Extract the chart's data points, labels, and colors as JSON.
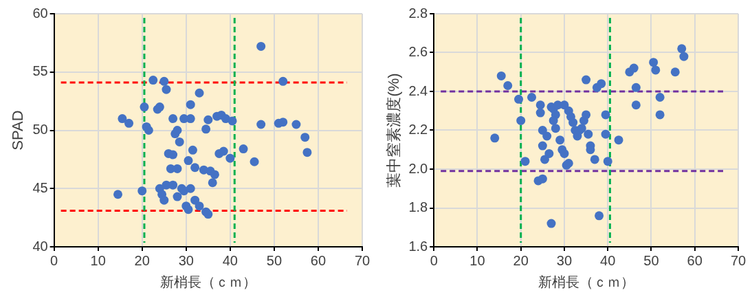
{
  "chart_data": [
    {
      "type": "scatter",
      "xlabel": "新梢長（ｃｍ）",
      "ylabel": "SPAD",
      "xlim": [
        0,
        70
      ],
      "xticks": [
        0,
        10,
        20,
        30,
        40,
        50,
        60,
        70
      ],
      "ylim": [
        40,
        60
      ],
      "yticks": [
        40,
        45,
        50,
        55,
        60
      ],
      "grid": true,
      "marker": "circle",
      "ref_lines": [
        {
          "axis": "y",
          "value": 54.1,
          "color": "#ff0000",
          "line_style": "dashed"
        },
        {
          "axis": "y",
          "value": 43.1,
          "color": "#ff0000",
          "line_style": "dashed"
        },
        {
          "axis": "x",
          "value": 20.5,
          "color": "#00b050",
          "line_style": "dashed"
        },
        {
          "axis": "x",
          "value": 41,
          "color": "#00b050",
          "line_style": "dashed"
        }
      ],
      "series": [
        {
          "color": "#4472c4",
          "x": [
            14.5,
            15.5,
            17,
            20,
            20.5,
            21,
            21.5,
            22.5,
            23.5,
            24,
            25,
            25.5,
            24,
            24.5,
            25,
            25.5,
            26,
            26.5,
            27,
            27,
            27.5,
            28,
            28.5,
            28,
            27,
            28,
            29,
            29.5,
            30,
            30.5,
            30.5,
            29.5,
            31,
            31,
            31.5,
            32,
            31,
            32,
            33,
            33,
            34,
            34.5,
            35,
            34.5,
            35,
            35.5,
            36,
            36.5,
            37,
            37.5,
            38,
            38.5,
            39,
            40,
            40.5,
            43,
            45.5,
            47,
            47,
            51,
            52,
            52,
            55,
            57,
            57.5
          ],
          "values": [
            44.5,
            51,
            50.6,
            44.8,
            52,
            50.3,
            50,
            54.3,
            51.8,
            52,
            54.2,
            53.5,
            45,
            44.5,
            44,
            45.3,
            48,
            46.7,
            47.9,
            51,
            49.7,
            50,
            49,
            46.7,
            45.3,
            44.3,
            45,
            44.8,
            43.5,
            43.2,
            47.4,
            51,
            51,
            52.2,
            48.3,
            46.8,
            45,
            44,
            53.2,
            43.5,
            46.6,
            43,
            42.8,
            50.1,
            50.9,
            46.5,
            45.5,
            46.2,
            51.2,
            48,
            51.3,
            48.2,
            51,
            47.6,
            50.8,
            48.4,
            47.3,
            57.2,
            50.5,
            50.6,
            50.7,
            54.2,
            50.5,
            49.4,
            48.1
          ]
        }
      ]
    },
    {
      "type": "scatter",
      "xlabel": "新梢長（ｃｍ）",
      "ylabel": "葉中窒素濃度(%)",
      "xlim": [
        0,
        70
      ],
      "xticks": [
        0,
        10,
        20,
        30,
        40,
        50,
        60,
        70
      ],
      "ylim": [
        1.6,
        2.8
      ],
      "yticks": [
        1.6,
        1.8,
        {
          "value": 2,
          "label": "2.0"
        },
        2.2,
        2.4,
        2.6,
        2.8
      ],
      "grid": true,
      "marker": "circle",
      "ref_lines": [
        {
          "axis": "y",
          "value": 2.4,
          "color": "#7030a0",
          "line_style": "dashed"
        },
        {
          "axis": "y",
          "value": 1.99,
          "color": "#7030a0",
          "line_style": "dashed"
        },
        {
          "axis": "x",
          "value": 20,
          "color": "#00b050",
          "line_style": "dashed"
        },
        {
          "axis": "x",
          "value": 40.5,
          "color": "#00b050",
          "line_style": "dashed"
        }
      ],
      "series": [
        {
          "color": "#4472c4",
          "x": [
            14,
            15.5,
            17,
            19.5,
            20,
            21,
            22.5,
            24,
            25,
            24.5,
            24.5,
            25,
            25,
            25.5,
            26,
            26.5,
            27,
            27,
            27.5,
            28,
            28.5,
            27.5,
            28,
            29,
            29.5,
            30,
            30.5,
            31,
            30,
            31,
            31.5,
            32,
            32.5,
            33,
            33.5,
            34,
            34.5,
            35,
            35,
            35.5,
            36,
            36,
            37,
            37.5,
            38,
            38.5,
            39.5,
            39.5,
            40,
            42.5,
            45,
            46,
            46.5,
            46.5,
            50.5,
            51,
            52,
            52,
            55.5,
            57,
            57.5
          ],
          "values": [
            2.16,
            2.48,
            2.43,
            2.36,
            2.25,
            2.04,
            2.37,
            1.94,
            1.95,
            2.33,
            2.29,
            2.2,
            2.12,
            2.05,
            2.17,
            2.08,
            1.72,
            2.32,
            2.31,
            2.28,
            2.33,
            2.25,
            2.21,
            2.15,
            2.1,
            2.08,
            2.02,
            2.03,
            2.33,
            2.3,
            2.27,
            2.24,
            2.2,
            2.17,
            2.2,
            2.21,
            2.25,
            2.28,
            2.46,
            2.18,
            2.12,
            2.1,
            2.05,
            2.42,
            1.76,
            2.44,
            2.28,
            2.18,
            2.04,
            2.15,
            2.5,
            2.52,
            2.42,
            2.33,
            2.55,
            2.51,
            2.37,
            2.28,
            2.5,
            2.62,
            2.58
          ]
        }
      ]
    }
  ]
}
